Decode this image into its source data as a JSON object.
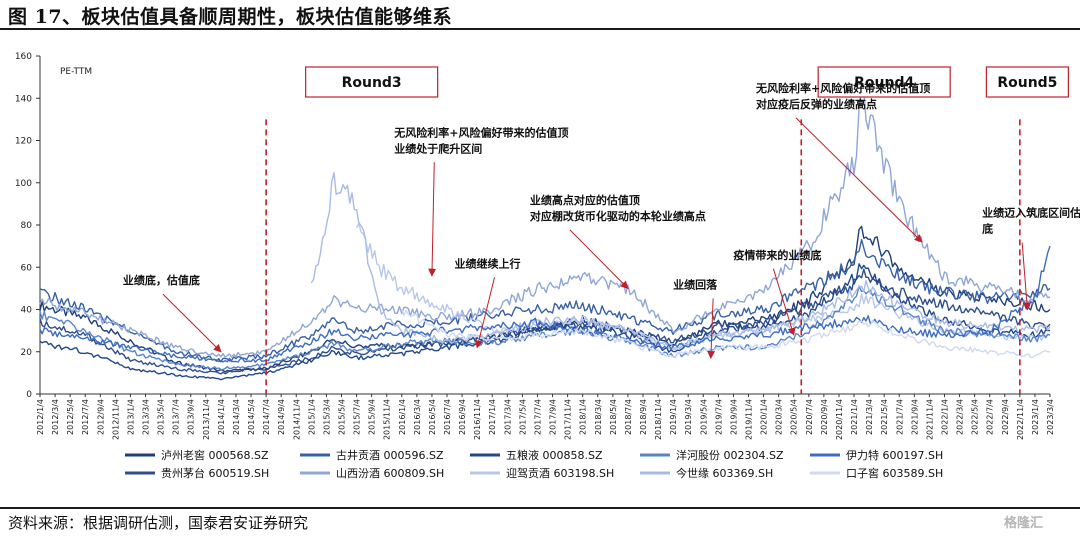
{
  "page": {
    "title": "图 17、板块估值具备顺周期性，板块估值能够维系",
    "source": "资料来源：根据调研估测，国泰君安证券研究",
    "watermark": "格隆汇"
  },
  "colors": {
    "s1": "#1f3f7a",
    "s2": "#2f4e8c",
    "s3": "#3860a8",
    "s4": "#5a84c8",
    "s5": "#3d6cc2",
    "s6": "#22488a",
    "s7": "#8fa6d8",
    "s8": "#a8bbe6",
    "s9": "#b8c7ea",
    "s10": "#cfd9f2",
    "annotation_red": "#c0202a",
    "axis": "#333333"
  },
  "chart_data": {
    "type": "line",
    "ylabel": "PE-TTM",
    "ylim": [
      0,
      160
    ],
    "yticks": [
      0,
      20,
      40,
      60,
      80,
      100,
      120,
      140,
      160
    ],
    "xlim": [
      "2012-01-04",
      "2023-03-04"
    ],
    "xtick_labels": [
      "2012/1/4",
      "2012/3/4",
      "2012/5/4",
      "2012/7/4",
      "2012/9/4",
      "2012/11/4",
      "2013/1/4",
      "2013/3/4",
      "2013/5/4",
      "2013/7/4",
      "2013/9/4",
      "2013/11/4",
      "2014/1/4",
      "2014/3/4",
      "2014/5/4",
      "2014/7/4",
      "2014/9/4",
      "2014/11/4",
      "2015/1/4",
      "2015/3/4",
      "2015/5/4",
      "2015/7/4",
      "2015/9/4",
      "2015/11/4",
      "2016/1/4",
      "2016/3/4",
      "2016/5/4",
      "2016/7/4",
      "2016/9/4",
      "2016/11/4",
      "2017/1/4",
      "2017/3/4",
      "2017/5/4",
      "2017/7/4",
      "2017/9/4",
      "2017/11/4",
      "2018/1/4",
      "2018/3/4",
      "2018/5/4",
      "2018/7/4",
      "2018/9/4",
      "2018/11/4",
      "2019/1/4",
      "2019/3/4",
      "2019/5/4",
      "2019/7/4",
      "2019/9/4",
      "2019/11/4",
      "2020/1/4",
      "2020/3/4",
      "2020/5/4",
      "2020/7/4",
      "2020/9/4",
      "2020/11/4",
      "2021/1/4",
      "2021/3/4",
      "2021/5/4",
      "2021/7/4",
      "2021/9/4",
      "2021/11/4",
      "2022/1/4",
      "2022/3/4",
      "2022/5/4",
      "2022/7/4",
      "2022/9/4",
      "2022/11/4",
      "2023/1/4",
      "2023/3/4"
    ],
    "x": [
      "2012-01",
      "2012-07",
      "2013-01",
      "2013-07",
      "2014-01",
      "2014-07",
      "2015-01",
      "2015-04",
      "2015-07",
      "2015-10",
      "2016-01",
      "2016-07",
      "2017-01",
      "2017-07",
      "2018-01",
      "2018-07",
      "2019-01",
      "2019-07",
      "2020-01",
      "2020-07",
      "2021-01",
      "2021-02",
      "2021-07",
      "2022-01",
      "2022-07",
      "2023-01",
      "2023-03"
    ],
    "series": [
      {
        "name": "泸州老窖",
        "code": "000568.SZ",
        "color_key": "s1",
        "values": [
          42,
          36,
          25,
          15,
          11,
          12,
          20,
          26,
          22,
          23,
          23,
          24,
          27,
          30,
          35,
          30,
          24,
          33,
          35,
          44,
          65,
          78,
          60,
          48,
          45,
          42,
          40
        ]
      },
      {
        "name": "贵州茅台",
        "code": "600519.SH",
        "color_key": "s2",
        "values": [
          34,
          28,
          16,
          12,
          10,
          12,
          17,
          22,
          19,
          21,
          22,
          24,
          27,
          32,
          33,
          30,
          25,
          32,
          33,
          42,
          52,
          57,
          48,
          42,
          38,
          32,
          33
        ]
      },
      {
        "name": "古井贡酒",
        "code": "000596.SZ",
        "color_key": "s3",
        "values": [
          48,
          40,
          30,
          20,
          16,
          18,
          28,
          35,
          30,
          32,
          33,
          34,
          38,
          40,
          42,
          36,
          30,
          38,
          40,
          50,
          62,
          70,
          55,
          48,
          45,
          48,
          50
        ]
      },
      {
        "name": "山西汾酒",
        "code": "600809.SH",
        "color_key": "s7",
        "values": [
          44,
          38,
          30,
          22,
          18,
          20,
          35,
          45,
          40,
          42,
          40,
          36,
          40,
          50,
          55,
          50,
          30,
          40,
          48,
          70,
          110,
          140,
          90,
          55,
          50,
          45,
          46
        ]
      },
      {
        "name": "五粮液",
        "code": "000858.SZ",
        "color_key": "s6",
        "values": [
          24,
          20,
          12,
          9,
          7,
          10,
          16,
          20,
          17,
          18,
          19,
          22,
          25,
          30,
          32,
          28,
          20,
          30,
          32,
          38,
          55,
          60,
          45,
          35,
          30,
          28,
          30
        ]
      },
      {
        "name": "迎驾贡酒",
        "code": "603198.SH",
        "color_key": "s9",
        "values": [
          null,
          null,
          null,
          null,
          null,
          null,
          null,
          null,
          80,
          60,
          50,
          40,
          30,
          32,
          35,
          30,
          22,
          28,
          30,
          35,
          40,
          45,
          38,
          30,
          28,
          26,
          28
        ]
      },
      {
        "name": "洋河股份",
        "code": "002304.SZ",
        "color_key": "s4",
        "values": [
          38,
          30,
          20,
          14,
          12,
          14,
          20,
          24,
          20,
          22,
          24,
          25,
          24,
          28,
          30,
          25,
          18,
          22,
          22,
          30,
          45,
          50,
          40,
          30,
          28,
          26,
          28
        ]
      },
      {
        "name": "今世缘",
        "code": "603369.SH",
        "color_key": "s8",
        "values": [
          null,
          null,
          null,
          null,
          null,
          null,
          50,
          100,
          90,
          40,
          30,
          25,
          28,
          34,
          35,
          30,
          22,
          28,
          30,
          36,
          48,
          52,
          42,
          34,
          32,
          30,
          32
        ]
      },
      {
        "name": "伊力特",
        "code": "600197.SH",
        "color_key": "s5",
        "values": [
          30,
          26,
          22,
          18,
          16,
          16,
          25,
          30,
          26,
          28,
          28,
          30,
          32,
          34,
          30,
          26,
          22,
          26,
          28,
          32,
          34,
          36,
          30,
          28,
          30,
          45,
          70
        ]
      },
      {
        "name": "口子窖",
        "code": "603589.SH",
        "color_key": "s10",
        "values": [
          null,
          null,
          null,
          null,
          null,
          null,
          null,
          null,
          null,
          null,
          40,
          28,
          26,
          28,
          30,
          24,
          18,
          22,
          22,
          26,
          32,
          35,
          28,
          22,
          20,
          18,
          20
        ]
      }
    ],
    "round_markers": [
      {
        "date": "2014-07",
        "label": ""
      },
      {
        "date": "2020-06",
        "label": ""
      },
      {
        "date": "2022-11",
        "label": ""
      }
    ],
    "round_boxes": [
      {
        "label": "Round3",
        "date": "2015-09"
      },
      {
        "label": "Round4",
        "date": "2021-05"
      },
      {
        "label": "Round5",
        "date": "2022-12"
      }
    ],
    "annotations": [
      {
        "lines": [
          "业绩底，估值底"
        ],
        "text_at": [
          "2012-12",
          52
        ],
        "arrow_to": [
          "2014-01",
          20
        ]
      },
      {
        "lines": [
          "无风险利率+风险偏好带来的估值顶",
          "业绩处于爬升区间"
        ],
        "text_at": [
          "2015-12",
          122
        ],
        "arrow_to": [
          "2016-05",
          56
        ]
      },
      {
        "lines": [
          "业绩继续上行"
        ],
        "text_at": [
          "2016-08",
          60
        ],
        "arrow_to": [
          "2016-11",
          22
        ]
      },
      {
        "lines": [
          "业绩高点对应的估值顶",
          "对应棚改货币化驱动的本轮业绩高点"
        ],
        "text_at": [
          "2017-06",
          90
        ],
        "arrow_to": [
          "2018-07",
          50
        ]
      },
      {
        "lines": [
          "业绩回落"
        ],
        "text_at": [
          "2019-01",
          50
        ],
        "arrow_to": [
          "2019-06",
          17
        ]
      },
      {
        "lines": [
          "疫情带来的业绩底"
        ],
        "text_at": [
          "2019-09",
          64
        ],
        "arrow_to": [
          "2020-05",
          28
        ]
      },
      {
        "lines": [
          "无风险利率+风险偏好带来的估值顶",
          "对应疫后反弹的业绩高点"
        ],
        "text_at": [
          "2019-12",
          143
        ],
        "arrow_to": [
          "2021-10",
          72
        ]
      },
      {
        "lines": [
          "业绩迈入筑底区间估值",
          "底"
        ],
        "text_at": [
          "2022-06",
          84
        ],
        "arrow_to": [
          "2022-12",
          40
        ]
      }
    ]
  }
}
